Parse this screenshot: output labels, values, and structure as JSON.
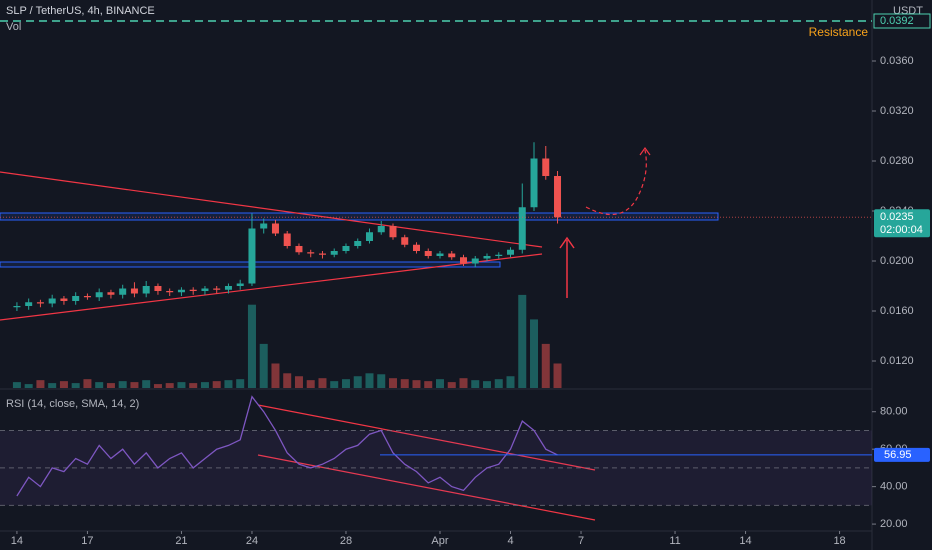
{
  "chart_data": [
    {
      "type": "candlestick",
      "title": "SLP / TetherUS, 4h, BINANCE",
      "volume_label": "Vol",
      "unit": "USDT",
      "x": [
        0,
        0.5,
        1,
        1.5,
        2,
        2.5,
        3,
        3.5,
        4,
        4.5,
        5,
        5.5,
        6,
        6.5,
        7,
        7.5,
        8,
        8.5,
        9,
        9.5,
        10,
        10.5,
        11,
        11.5,
        12,
        12.5,
        13,
        13.5,
        14,
        14.5,
        15,
        15.5,
        16,
        16.5,
        17,
        17.5,
        18,
        18.5,
        19,
        19.5,
        20,
        20.5,
        21,
        21.5,
        22,
        22.5,
        23
      ],
      "open": [
        0.0163,
        0.0164,
        0.0167,
        0.0166,
        0.017,
        0.0168,
        0.0172,
        0.0171,
        0.0175,
        0.0173,
        0.0178,
        0.0174,
        0.018,
        0.0176,
        0.0175,
        0.0177,
        0.0176,
        0.0178,
        0.0177,
        0.018,
        0.0182,
        0.0226,
        0.023,
        0.0222,
        0.0212,
        0.0207,
        0.0206,
        0.0205,
        0.0208,
        0.0212,
        0.0216,
        0.0223,
        0.0228,
        0.0219,
        0.0213,
        0.0208,
        0.0204,
        0.0206,
        0.0203,
        0.0198,
        0.0202,
        0.0204,
        0.0205,
        0.0209,
        0.0243,
        0.0282,
        0.0268
      ],
      "high": [
        0.0167,
        0.017,
        0.0169,
        0.0173,
        0.0172,
        0.0175,
        0.0174,
        0.0178,
        0.0177,
        0.0181,
        0.0183,
        0.0184,
        0.0182,
        0.0178,
        0.0179,
        0.0179,
        0.018,
        0.018,
        0.0182,
        0.0185,
        0.0238,
        0.0234,
        0.0233,
        0.0224,
        0.0214,
        0.0209,
        0.0208,
        0.021,
        0.0214,
        0.0218,
        0.0226,
        0.0232,
        0.023,
        0.0221,
        0.0215,
        0.021,
        0.0208,
        0.0208,
        0.0205,
        0.0204,
        0.0206,
        0.0207,
        0.0211,
        0.0262,
        0.0295,
        0.0292,
        0.0272
      ],
      "low": [
        0.016,
        0.0161,
        0.0163,
        0.0163,
        0.0165,
        0.0165,
        0.0169,
        0.0168,
        0.017,
        0.017,
        0.0171,
        0.0171,
        0.0173,
        0.0172,
        0.0172,
        0.0173,
        0.0173,
        0.0174,
        0.0174,
        0.0177,
        0.018,
        0.0222,
        0.022,
        0.021,
        0.0205,
        0.0203,
        0.0202,
        0.0203,
        0.0206,
        0.021,
        0.0214,
        0.0221,
        0.0217,
        0.0211,
        0.0206,
        0.0202,
        0.0202,
        0.0201,
        0.0196,
        0.0195,
        0.02,
        0.0202,
        0.0203,
        0.0206,
        0.024,
        0.0265,
        0.023
      ],
      "close": [
        0.0164,
        0.0167,
        0.0166,
        0.017,
        0.0168,
        0.0172,
        0.0171,
        0.0175,
        0.0173,
        0.0178,
        0.0174,
        0.018,
        0.0176,
        0.0175,
        0.0177,
        0.0176,
        0.0178,
        0.0177,
        0.018,
        0.0182,
        0.0226,
        0.023,
        0.0222,
        0.0212,
        0.0207,
        0.0206,
        0.0205,
        0.0208,
        0.0212,
        0.0216,
        0.0223,
        0.0228,
        0.0219,
        0.0213,
        0.0208,
        0.0204,
        0.0206,
        0.0203,
        0.0198,
        0.0202,
        0.0204,
        0.0205,
        0.0209,
        0.0243,
        0.0282,
        0.0268,
        0.0235
      ],
      "volume": [
        6,
        4,
        8,
        5,
        7,
        5,
        9,
        6,
        5,
        7,
        6,
        8,
        4,
        5,
        6,
        5,
        6,
        7,
        8,
        9,
        85,
        45,
        25,
        15,
        12,
        8,
        10,
        7,
        9,
        12,
        15,
        14,
        10,
        9,
        8,
        7,
        9,
        6,
        10,
        8,
        7,
        9,
        12,
        95,
        70,
        45,
        25
      ],
      "volume_ylim": [
        0,
        100
      ],
      "up_color": "#26a69a",
      "down_color": "#ef5350",
      "ylim": [
        0.00984,
        0.04088
      ],
      "yticks": [
        {
          "value": 0.012,
          "label": "0.0120"
        },
        {
          "value": 0.016,
          "label": "0.0160"
        },
        {
          "value": 0.02,
          "label": "0.0200"
        },
        {
          "value": 0.024,
          "label": "0.0240"
        },
        {
          "value": 0.028,
          "label": "0.0280"
        },
        {
          "value": 0.032,
          "label": "0.0320"
        },
        {
          "value": 0.036,
          "label": "0.0360"
        }
      ],
      "resistance": {
        "value": 0.0392,
        "label": "Resistance"
      },
      "countdown": "02:00:04"
    },
    {
      "type": "line",
      "title": "RSI (14, close, SMA, 14, 2)",
      "color": "#7e57c2",
      "x": [
        0,
        0.5,
        1,
        1.5,
        2,
        2.5,
        3,
        3.5,
        4,
        4.5,
        5,
        5.5,
        6,
        6.5,
        7,
        7.5,
        8,
        8.5,
        9,
        9.5,
        10,
        10.5,
        11,
        11.5,
        12,
        12.5,
        13,
        13.5,
        14,
        14.5,
        15,
        15.5,
        16,
        16.5,
        17,
        17.5,
        18,
        18.5,
        19,
        19.5,
        20,
        20.5,
        21,
        21.5,
        22,
        22.5,
        23
      ],
      "values": [
        35,
        45,
        40,
        50,
        48,
        55,
        52,
        62,
        55,
        60,
        52,
        58,
        50,
        55,
        58,
        50,
        55,
        60,
        62,
        65,
        88,
        80,
        70,
        58,
        52,
        50,
        52,
        55,
        60,
        62,
        68,
        70,
        58,
        52,
        48,
        42,
        45,
        40,
        38,
        45,
        50,
        52,
        60,
        75,
        70,
        60,
        56.95
      ],
      "bands": [
        70,
        50,
        30
      ],
      "ylim": [
        16.84,
        90.53
      ],
      "yticks": [
        {
          "value": 20,
          "label": "20.00"
        },
        {
          "value": 40,
          "label": "40.00"
        },
        {
          "value": 60,
          "label": "60.00"
        },
        {
          "value": 80,
          "label": "80.00"
        }
      ],
      "xlim": [
        -0.72,
        36.38
      ],
      "xticks": [
        {
          "value": 0,
          "label": "14"
        },
        {
          "value": 3,
          "label": "17"
        },
        {
          "value": 7,
          "label": "21"
        },
        {
          "value": 10,
          "label": "24"
        },
        {
          "value": 14,
          "label": "28"
        },
        {
          "value": 18,
          "label": "Apr"
        },
        {
          "value": 21,
          "label": "4"
        },
        {
          "value": 24,
          "label": "7"
        },
        {
          "value": 28,
          "label": "11"
        },
        {
          "value": 31,
          "label": "14"
        },
        {
          "value": 35,
          "label": "18"
        }
      ]
    }
  ]
}
